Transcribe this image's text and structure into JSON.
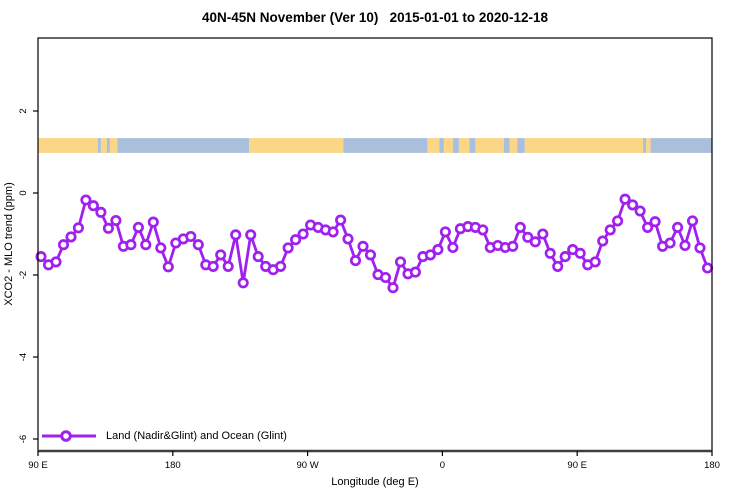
{
  "title": "40N-45N November (Ver 10)   2015-01-01 to 2020-12-18",
  "legend": {
    "series_label": "Land (Nadir&Glint) and Ocean (Glint)"
  },
  "chart_data": {
    "type": "line",
    "title": "40N-45N November (Ver 10)   2015-01-01 to 2020-12-18",
    "xlabel": "Longitude (deg E)",
    "ylabel": "XCO2 - MLO trend (ppm)",
    "grid": false,
    "legend_position": "bottom-left",
    "xlim_deg": [
      90,
      540
    ],
    "ylim": [
      -6.3,
      3.8
    ],
    "x_ticks": [
      {
        "deg": 90,
        "label": "90 E"
      },
      {
        "deg": 180,
        "label": "180"
      },
      {
        "deg": 270,
        "label": "90 W"
      },
      {
        "deg": 360,
        "label": "0"
      },
      {
        "deg": 450,
        "label": "90 E"
      },
      {
        "deg": 540,
        "label": "180"
      }
    ],
    "y_ticks": [
      {
        "value": 2,
        "label": "2"
      },
      {
        "value": 0,
        "label": "0"
      },
      {
        "value": -2,
        "label": "-2"
      },
      {
        "value": -4,
        "label": "-4"
      },
      {
        "value": -6,
        "label": "-6"
      }
    ],
    "colors": {
      "series": "#A020F0",
      "marker_fill": "#ffffff",
      "land": "#FBD687",
      "ocean": "#A9BFDC",
      "axis": "#000000"
    },
    "series": [
      {
        "name": "Land (Nadir&Glint) and Ocean (Glint)",
        "x_start_deg": 92,
        "x_step_deg": 5,
        "values": [
          -1.55,
          -1.75,
          -1.68,
          -1.26,
          -1.07,
          -0.85,
          -0.17,
          -0.31,
          -0.47,
          -0.86,
          -0.67,
          -1.3,
          -1.26,
          -0.84,
          -1.26,
          -0.71,
          -1.34,
          -1.8,
          -1.22,
          -1.12,
          -1.06,
          -1.26,
          -1.75,
          -1.79,
          -1.51,
          -1.79,
          -1.02,
          -2.19,
          -1.02,
          -1.55,
          -1.79,
          -1.87,
          -1.79,
          -1.34,
          -1.14,
          -1.0,
          -0.78,
          -0.84,
          -0.9,
          -0.95,
          -0.66,
          -1.12,
          -1.65,
          -1.3,
          -1.51,
          -1.99,
          -2.06,
          -2.31,
          -1.68,
          -1.97,
          -1.93,
          -1.55,
          -1.51,
          -1.38,
          -0.95,
          -1.33,
          -0.87,
          -0.82,
          -0.84,
          -0.9,
          -1.33,
          -1.28,
          -1.33,
          -1.3,
          -0.84,
          -1.08,
          -1.19,
          -1.0,
          -1.47,
          -1.79,
          -1.55,
          -1.38,
          -1.47,
          -1.75,
          -1.68,
          -1.17,
          -0.9,
          -0.68,
          -0.15,
          -0.29,
          -0.44,
          -0.84,
          -0.7,
          -1.3,
          -1.22,
          -0.84,
          -1.28,
          -0.68,
          -1.34,
          -1.83
        ]
      }
    ],
    "land_ocean_strip": {
      "y_range_ppm": [
        0.98,
        1.34
      ],
      "segments": [
        [
          90,
          130,
          "land"
        ],
        [
          130,
          132,
          "ocean"
        ],
        [
          132,
          136,
          "land"
        ],
        [
          136,
          138,
          "ocean"
        ],
        [
          138,
          143,
          "land"
        ],
        [
          143,
          231,
          "ocean"
        ],
        [
          231,
          294,
          "land"
        ],
        [
          294,
          350,
          "ocean"
        ],
        [
          350,
          358,
          "land"
        ],
        [
          358,
          361,
          "ocean"
        ],
        [
          361,
          367,
          "land"
        ],
        [
          367,
          371,
          "ocean"
        ],
        [
          371,
          378,
          "land"
        ],
        [
          378,
          382,
          "ocean"
        ],
        [
          382,
          401,
          "land"
        ],
        [
          401,
          405,
          "ocean"
        ],
        [
          405,
          410,
          "land"
        ],
        [
          410,
          415,
          "ocean"
        ],
        [
          415,
          494,
          "land"
        ],
        [
          494,
          496,
          "ocean"
        ],
        [
          496,
          499,
          "land"
        ],
        [
          499,
          540,
          "ocean"
        ]
      ]
    }
  }
}
